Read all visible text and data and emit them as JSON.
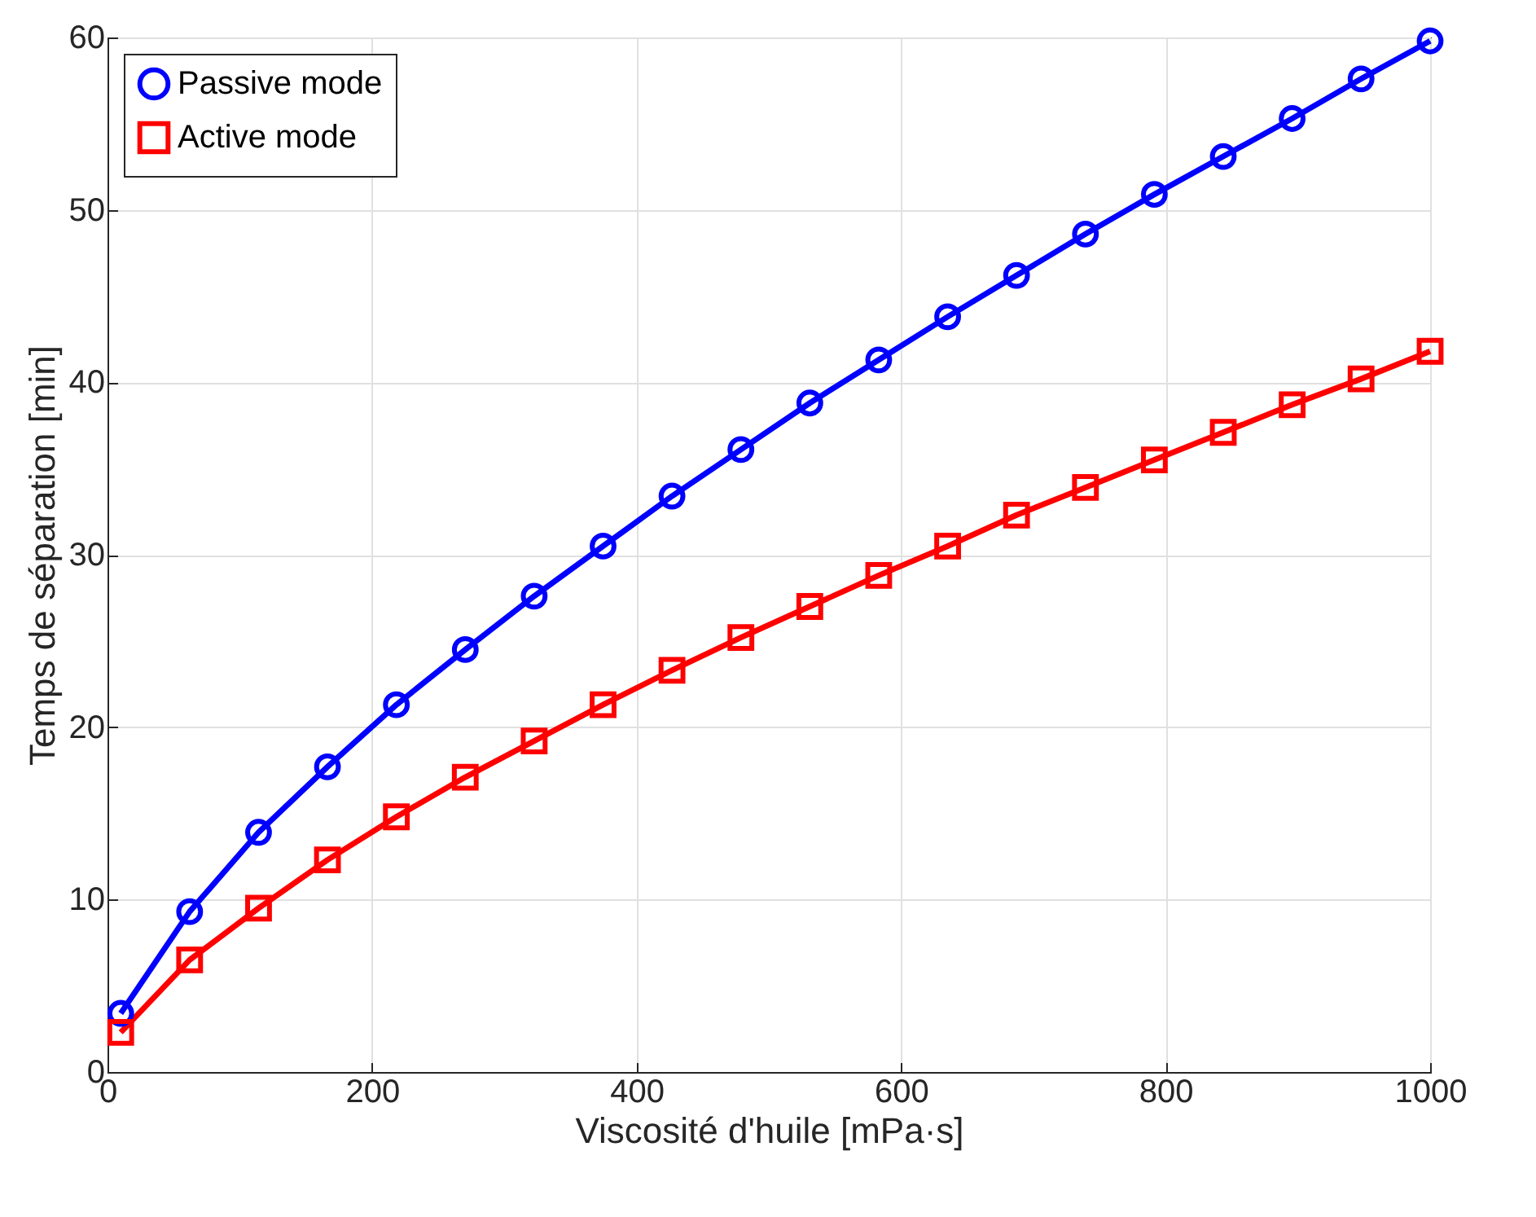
{
  "chart_data": {
    "type": "line",
    "xlabel": "Viscosité d'huile [mPa·s]",
    "ylabel": "Temps de séparation [min]",
    "x": [
      10,
      62.1,
      114.2,
      166.3,
      218.4,
      270.5,
      322.6,
      374.7,
      426.8,
      478.9,
      531,
      583.1,
      635.2,
      687.3,
      739.4,
      791.5,
      843.6,
      895.7,
      947.8,
      1000
    ],
    "series": [
      {
        "name": "Passive mode",
        "color": "#0000ff",
        "marker": "circle",
        "values": [
          3.4,
          9.3,
          13.9,
          17.7,
          21.3,
          24.5,
          27.6,
          30.5,
          33.4,
          36.1,
          38.8,
          41.3,
          43.8,
          46.2,
          48.6,
          50.9,
          53.1,
          55.3,
          57.6,
          59.8
        ]
      },
      {
        "name": "Active mode",
        "color": "#ff0000",
        "marker": "square",
        "values": [
          2.3,
          6.5,
          9.5,
          12.3,
          14.8,
          17.1,
          19.2,
          21.3,
          23.3,
          25.2,
          27.0,
          28.8,
          30.5,
          32.3,
          33.9,
          35.5,
          37.1,
          38.7,
          40.2,
          41.8
        ]
      }
    ],
    "xlim": [
      0,
      1000
    ],
    "xticks": [
      0,
      200,
      400,
      600,
      800,
      1000
    ],
    "ylim": [
      0,
      60
    ],
    "yticks": [
      0,
      10,
      20,
      30,
      40,
      50,
      60
    ],
    "grid": true,
    "legend": "top left",
    "line_style": "solid"
  }
}
